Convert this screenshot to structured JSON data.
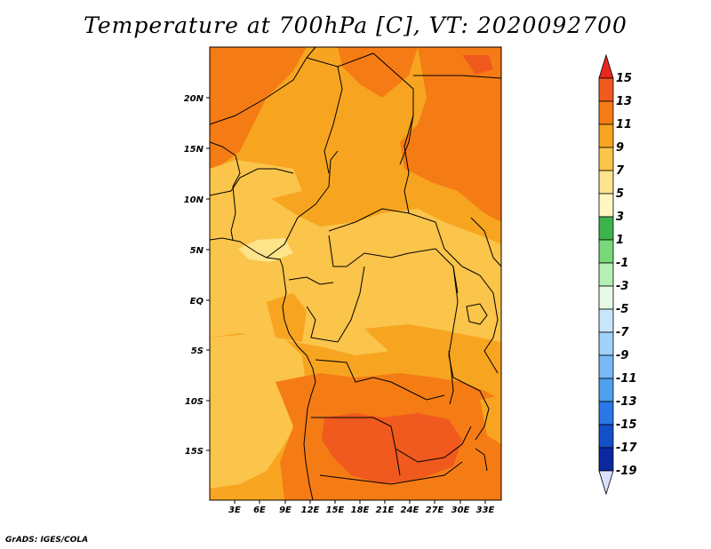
{
  "title": "Temperature at 700hPa [C], VT: 2020092700",
  "credit": "GrADS: IGES/COLA",
  "x_ticks": [
    "3E",
    "6E",
    "9E",
    "12E",
    "15E",
    "18E",
    "21E",
    "24E",
    "27E",
    "30E",
    "33E"
  ],
  "y_ticks": [
    "20N",
    "15N",
    "10N",
    "5N",
    "EQ",
    "5S",
    "10S",
    "15S"
  ],
  "colorbar": {
    "labels": [
      "15",
      "13",
      "11",
      "9",
      "7",
      "5",
      "3",
      "1",
      "-1",
      "-3",
      "-5",
      "-7",
      "-9",
      "-11",
      "-13",
      "-15",
      "-17",
      "-19"
    ],
    "colors": [
      "#e8281e",
      "#f05a1e",
      "#f57c14",
      "#f7a520",
      "#fbc44a",
      "#fde38a",
      "#fff7c0",
      "#3cb44b",
      "#78d87a",
      "#b4f0b4",
      "#e6fae6",
      "#c8e6fa",
      "#a0d2fa",
      "#78b9f5",
      "#50a0f0",
      "#2878e6",
      "#1450c8",
      "#0a28a0",
      "#000a64"
    ],
    "top_arrow_color": "#e8281e",
    "bottom_arrow_color": "#dce0ff"
  },
  "field_colors": {
    "c5": "#fde38a",
    "c7": "#fbc44a",
    "c9": "#f7a520",
    "c11": "#f57c14",
    "c13": "#f05a1e"
  }
}
